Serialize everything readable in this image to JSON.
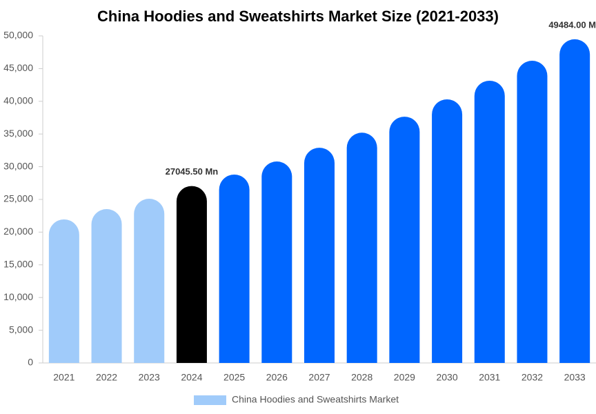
{
  "chart_data": {
    "type": "bar",
    "title": "China Hoodies and Sweatshirts Market Size (2021-2033)",
    "categories": [
      "2021",
      "2022",
      "2023",
      "2024",
      "2025",
      "2026",
      "2027",
      "2028",
      "2029",
      "2030",
      "2031",
      "2032",
      "2033"
    ],
    "series": [
      {
        "name": "China Hoodies and Sweatshirts Market",
        "color": "#a0cbfa",
        "values": [
          21940,
          23520,
          25100,
          27045.5,
          28800,
          30800,
          32900,
          35200,
          37650,
          40300,
          43150,
          46200,
          49484
        ],
        "value_labels": [
          null,
          null,
          null,
          "27045.50 Mn",
          null,
          null,
          null,
          null,
          null,
          null,
          null,
          null,
          "49484.00 M"
        ],
        "colors": [
          "#a0cbfa",
          "#a0cbfa",
          "#a0cbfa",
          "#000000",
          "#0066ff",
          "#0066ff",
          "#0066ff",
          "#0066ff",
          "#0066ff",
          "#0066ff",
          "#0066ff",
          "#0066ff",
          "#0066ff"
        ]
      }
    ],
    "ylim": [
      0,
      50000
    ],
    "yticks": [
      0,
      {
        "value": 5000,
        "label": "5,000"
      },
      {
        "value": 10000,
        "label": "10,000"
      },
      {
        "value": 15000,
        "label": "15,000"
      },
      {
        "value": 20000,
        "label": "20,000"
      },
      {
        "value": 25000,
        "label": "25,000"
      },
      {
        "value": 30000,
        "label": "30,000"
      },
      {
        "value": 35000,
        "label": "35,000"
      },
      {
        "value": 40000,
        "label": "40,000"
      },
      {
        "value": 45000,
        "label": "45,000"
      },
      {
        "value": 50000,
        "label": "50,000"
      }
    ],
    "grid": false
  }
}
